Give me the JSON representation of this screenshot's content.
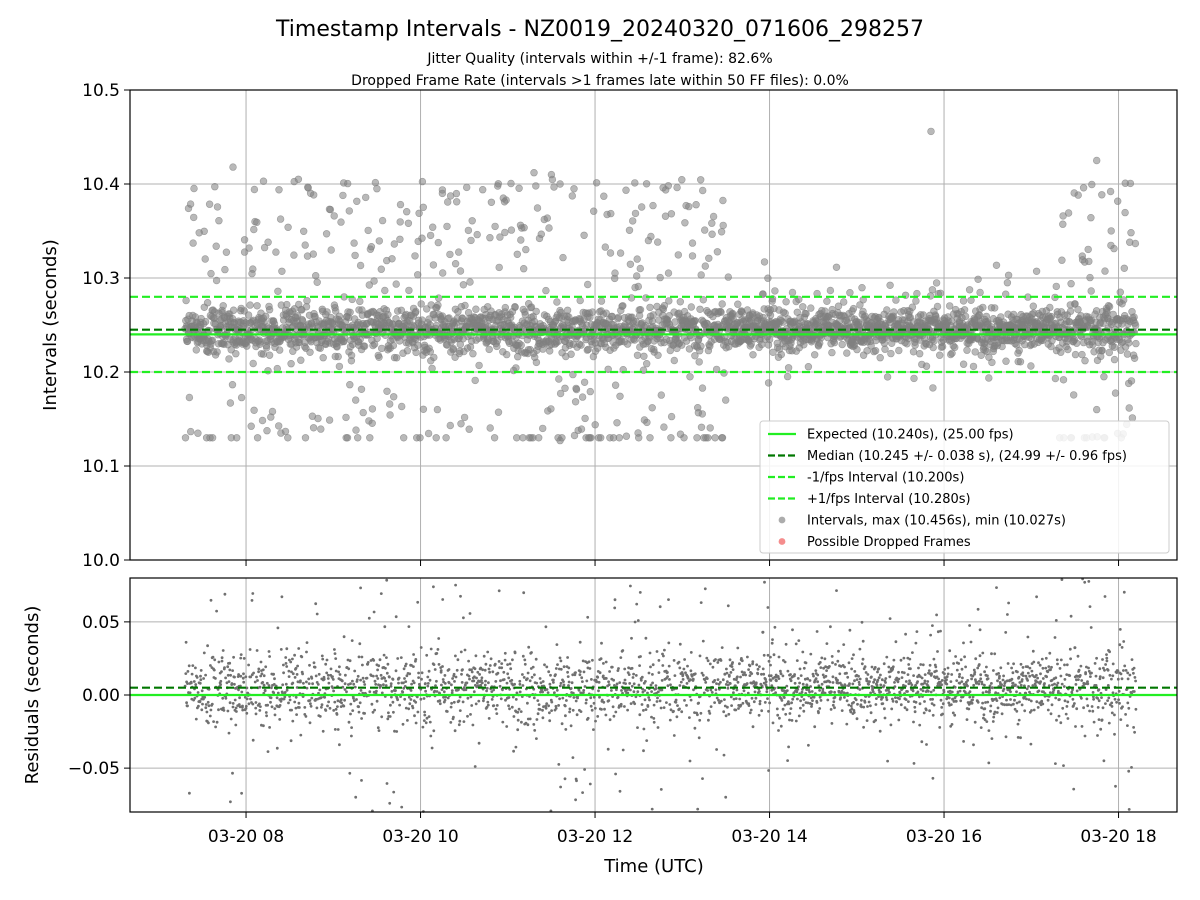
{
  "chart_data": {
    "type": "scatter",
    "title": "Timestamp Intervals - NZ0019_20240320_071606_298257",
    "subtitles": [
      "Jitter Quality (intervals within +/-1 frame): 82.6%",
      "Dropped Frame Rate (intervals >1 frames late within 50 FF files): 0.0%"
    ],
    "xlabel": "Time (UTC)",
    "x_range_hours": [
      6.67,
      18.67
    ],
    "x_ticks": [
      {
        "hour": 8,
        "label": "03-20 08"
      },
      {
        "hour": 10,
        "label": "03-20 10"
      },
      {
        "hour": 12,
        "label": "03-20 12"
      },
      {
        "hour": 14,
        "label": "03-20 14"
      },
      {
        "hour": 16,
        "label": "03-20 16"
      },
      {
        "hour": 18,
        "label": "03-20 18"
      }
    ],
    "data_time_range_hours": [
      7.3,
      18.2
    ],
    "top_panel": {
      "ylabel": "Intervals (seconds)",
      "ylim": [
        10.0,
        10.5
      ],
      "y_ticks": [
        10.0,
        10.1,
        10.2,
        10.3,
        10.4,
        10.5
      ],
      "y_tick_labels": [
        "10.0",
        "10.1",
        "10.2",
        "10.3",
        "10.4",
        "10.5"
      ],
      "grid": true,
      "lines": [
        {
          "name": "Expected (10.240s), (25.00 fps)",
          "y": 10.24,
          "style": "solid",
          "color": "#22ee22"
        },
        {
          "name": "Median (10.245 +/- 0.038 s), (24.99 +/- 0.96 fps)",
          "y": 10.245,
          "style": "dashed",
          "color": "#007700"
        },
        {
          "name": "-1/fps Interval (10.200s)",
          "y": 10.2,
          "style": "dashed",
          "color": "#22ee22"
        },
        {
          "name": "+1/fps Interval (10.280s)",
          "y": 10.28,
          "style": "dashed",
          "color": "#22ee22"
        }
      ],
      "scatter_series": [
        {
          "name": "Intervals, max (10.456s), min (10.027s)",
          "color": "#808080",
          "max": 10.456,
          "min": 10.027,
          "center": 10.245
        },
        {
          "name": "Possible Dropped Frames",
          "color": "#f05050",
          "count": 0
        }
      ],
      "outliers": [
        {
          "hour": 15.85,
          "y": 10.456
        },
        {
          "hour": 17.75,
          "y": 10.425
        },
        {
          "hour": 7.85,
          "y": 10.418
        },
        {
          "hour": 11.3,
          "y": 10.412
        },
        {
          "hour": 11.5,
          "y": 10.41
        },
        {
          "hour": 8.6,
          "y": 10.405
        },
        {
          "hour": 8.2,
          "y": 10.403
        },
        {
          "hour": 9.5,
          "y": 10.395
        },
        {
          "hour": 11.6,
          "y": 10.4
        },
        {
          "hour": 17.6,
          "y": 10.396
        },
        {
          "hour": 12.1,
          "y": 10.387
        },
        {
          "hour": 10.25,
          "y": 10.39
        },
        {
          "hour": 11.6,
          "y": 10.127
        },
        {
          "hour": 12.5,
          "y": 10.13
        },
        {
          "hour": 8.4,
          "y": 10.135
        },
        {
          "hour": 11.4,
          "y": 10.14
        },
        {
          "hour": 17.75,
          "y": 10.16
        }
      ],
      "legend_position": "lower-right"
    },
    "bottom_panel": {
      "ylabel": "Residuals (seconds)",
      "ylim": [
        -0.08,
        0.08
      ],
      "y_ticks": [
        -0.05,
        0.0,
        0.05
      ],
      "y_tick_labels": [
        "−0.05",
        "0.00",
        "0.05"
      ],
      "grid": true,
      "lines": [
        {
          "y": 0.0,
          "style": "solid",
          "color": "#22ee22"
        },
        {
          "y": 0.005,
          "style": "dashed",
          "color": "#007700"
        }
      ],
      "point_color": "#707070"
    }
  }
}
